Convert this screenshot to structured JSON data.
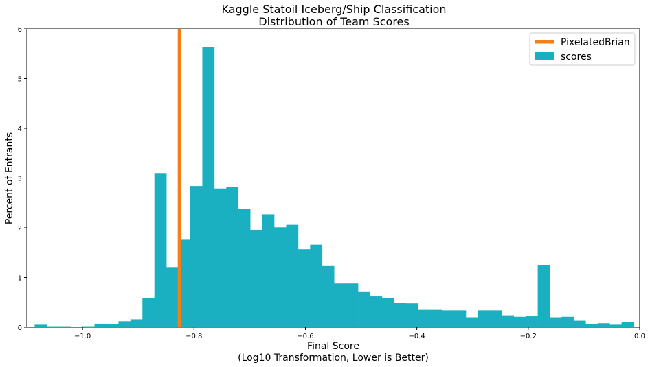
{
  "chart_data": {
    "type": "bar",
    "subtype": "histogram",
    "title": "Kaggle Statoil Iceberg/Ship Classification",
    "subtitle": "Distribution of Team Scores",
    "xlabel": "Final Score",
    "xlabel_note": "(Log10 Transformation, Lower is Better)",
    "ylabel": "Percent of Entrants",
    "xlim": [
      -1.1,
      0.0
    ],
    "ylim": [
      0,
      6
    ],
    "x_ticks": [
      -1.0,
      -0.8,
      -0.6,
      -0.4,
      -0.2,
      0.0
    ],
    "x_tick_labels": [
      "−1.0",
      "−0.8",
      "−0.6",
      "−0.4",
      "−0.2",
      "0.0"
    ],
    "y_ticks": [
      0,
      1,
      2,
      3,
      4,
      5,
      6
    ],
    "y_tick_labels": [
      "0",
      "1",
      "2",
      "3",
      "4",
      "5",
      "6"
    ],
    "grid": false,
    "legend_position": "top-right",
    "bin_start": -1.086,
    "bin_width": 0.0215,
    "series": [
      {
        "name": "scores",
        "kind": "histogram",
        "color": "#1ab0c1",
        "values": [
          0.05,
          0.02,
          0.02,
          0.01,
          0.02,
          0.07,
          0.06,
          0.12,
          0.16,
          0.58,
          3.1,
          1.21,
          1.76,
          2.84,
          5.63,
          2.79,
          2.82,
          2.38,
          1.96,
          2.27,
          2.01,
          2.06,
          1.57,
          1.66,
          1.23,
          0.88,
          0.88,
          0.72,
          0.62,
          0.58,
          0.49,
          0.48,
          0.35,
          0.35,
          0.34,
          0.34,
          0.2,
          0.34,
          0.34,
          0.24,
          0.21,
          0.22,
          1.25,
          0.2,
          0.21,
          0.13,
          0.06,
          0.08,
          0.05,
          0.1
        ]
      },
      {
        "name": "PixelatedBrian",
        "kind": "vline",
        "color": "#f57e15",
        "x": -0.826
      }
    ]
  }
}
